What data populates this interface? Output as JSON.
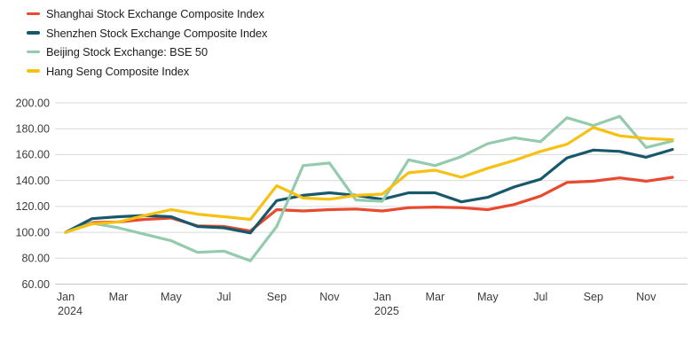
{
  "legend": {
    "items": [
      {
        "id": "shanghai",
        "label": "Shanghai Stock Exchange Composite Index",
        "color": "#e8492f"
      },
      {
        "id": "shenzhen",
        "label": "Shenzhen Stock Exchange Composite Index",
        "color": "#17586b"
      },
      {
        "id": "beijing",
        "label": "Beijing Stock Exchange: BSE 50",
        "color": "#93cbac"
      },
      {
        "id": "hangseng",
        "label": "Hang Seng Composite Index",
        "color": "#f6c112"
      }
    ]
  },
  "chart_data": {
    "type": "line",
    "x": [
      "Jan 2024",
      "Feb 2024",
      "Mar 2024",
      "Apr 2024",
      "May 2024",
      "Jun 2024",
      "Jul 2024",
      "Aug 2024",
      "Sep 2024",
      "Oct 2024",
      "Nov 2024",
      "Dec 2024",
      "Jan 2025",
      "Feb 2025",
      "Mar 2025",
      "Apr 2025",
      "May 2025",
      "Jun 2025",
      "Jul 2025",
      "Aug 2025",
      "Sep 2025",
      "Oct 2025",
      "Nov 2025",
      "Dec 2025"
    ],
    "x_ticks": [
      {
        "index": 0,
        "line1": "Jan",
        "line2": "2024"
      },
      {
        "index": 2,
        "line1": "Mar"
      },
      {
        "index": 4,
        "line1": "May"
      },
      {
        "index": 6,
        "line1": "Jul"
      },
      {
        "index": 8,
        "line1": "Sep"
      },
      {
        "index": 10,
        "line1": "Nov"
      },
      {
        "index": 12,
        "line1": "Jan",
        "line2": "2025"
      },
      {
        "index": 14,
        "line1": "Mar"
      },
      {
        "index": 16,
        "line1": "May"
      },
      {
        "index": 18,
        "line1": "Jul"
      },
      {
        "index": 20,
        "line1": "Sep"
      },
      {
        "index": 22,
        "line1": "Nov"
      }
    ],
    "series": [
      {
        "name": "Shanghai Stock Exchange Composite Index",
        "color": "#e8492f",
        "values": [
          100,
          107.5,
          108,
          110,
          111,
          105,
          104.5,
          101,
          117.5,
          116.5,
          117.5,
          118,
          116.5,
          119,
          119.5,
          119,
          117.5,
          121.5,
          128,
          138.5,
          139.5,
          142,
          139.5,
          142.5
        ]
      },
      {
        "name": "Shenzhen Stock Exchange Composite Index",
        "color": "#17586b",
        "values": [
          100,
          110.5,
          112,
          113,
          112,
          104.5,
          103.5,
          99.5,
          124.5,
          128.5,
          130.5,
          128.5,
          125.5,
          130.5,
          130.5,
          123.5,
          127,
          135,
          141,
          157.5,
          163.5,
          162.5,
          158,
          164
        ]
      },
      {
        "name": "Beijing Stock Exchange: BSE 50",
        "color": "#93cbac",
        "values": [
          100,
          107,
          103.5,
          98.5,
          93.5,
          84.5,
          85.5,
          78,
          104.5,
          151.5,
          153.5,
          125,
          124,
          156,
          151.5,
          158.5,
          168.5,
          173,
          170,
          188.5,
          182.5,
          189.5,
          165.5,
          170.5
        ]
      },
      {
        "name": "Hang Seng Composite Index",
        "color": "#f6c112",
        "values": [
          100,
          106.5,
          108,
          113,
          117.5,
          114,
          112,
          110,
          136,
          126.5,
          125.5,
          128.5,
          129.5,
          146,
          148,
          142.5,
          149.5,
          155.5,
          162.5,
          168,
          181,
          174.5,
          172.5,
          171.5
        ]
      }
    ],
    "ylim": [
      60,
      200
    ],
    "y_ticks": [
      "60.00",
      "80.00",
      "100.00",
      "120.00",
      "140.00",
      "160.00",
      "180.00",
      "200.00"
    ],
    "grid": true,
    "legend_position": "top-left",
    "title": "",
    "xlabel": "",
    "ylabel": ""
  },
  "style": {
    "gridline_color": "#d9d9d9",
    "axisline_color": "#c6c6c6",
    "tick_label_color": "#3c3c3c",
    "background": "#ffffff"
  }
}
